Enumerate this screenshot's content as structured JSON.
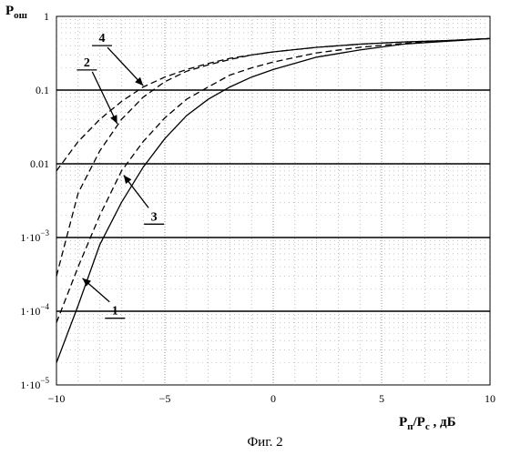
{
  "chart_data": {
    "type": "line",
    "ylabel": "P",
    "ylabel_sub": "ош",
    "xlabel_parts": {
      "p1": "P",
      "s1": "п",
      "slash": "/P",
      "s2": "с",
      "unit": " , дБ"
    },
    "caption": "Фиг. 2",
    "xlim": [
      -10,
      10
    ],
    "ylim": [
      1e-05,
      1
    ],
    "y_scale": "log",
    "grid": true,
    "x_ticks": [
      {
        "value": -10,
        "label": "−10"
      },
      {
        "value": -5,
        "label": "−5"
      },
      {
        "value": 0,
        "label": "0"
      },
      {
        "value": 5,
        "label": "5"
      },
      {
        "value": 10,
        "label": "10"
      }
    ],
    "y_ticks": [
      {
        "value": 1,
        "base": "1",
        "exp": ""
      },
      {
        "value": 0.1,
        "base": "0.1",
        "exp": ""
      },
      {
        "value": 0.01,
        "base": "0.01",
        "exp": ""
      },
      {
        "value": 0.001,
        "base": "1·10",
        "exp": "−3"
      },
      {
        "value": 0.0001,
        "base": "1·10",
        "exp": "−4"
      },
      {
        "value": 1e-05,
        "base": "1·10",
        "exp": "−5"
      }
    ],
    "series": [
      {
        "label": "1",
        "dash": "solid",
        "x": [
          -10,
          -9,
          -8,
          -7,
          -6,
          -5,
          -4,
          -3,
          -2,
          -1,
          0,
          2,
          4,
          6,
          8,
          10
        ],
        "y": [
          2e-05,
          0.00012,
          0.0008,
          0.003,
          0.009,
          0.022,
          0.045,
          0.075,
          0.11,
          0.15,
          0.19,
          0.28,
          0.35,
          0.42,
          0.46,
          0.5
        ],
        "label_text_at": [
          -7.3,
          9e-05
        ],
        "arrow_to": [
          -8.8,
          0.00028
        ]
      },
      {
        "label": "2",
        "dash": "dashed",
        "x": [
          -10,
          -9,
          -8,
          -7,
          -6,
          -5,
          -4,
          -3,
          -2,
          -1,
          0,
          2,
          4,
          6,
          8,
          10
        ],
        "y": [
          0.008,
          0.02,
          0.04,
          0.07,
          0.11,
          0.15,
          0.19,
          0.23,
          0.27,
          0.3,
          0.33,
          0.38,
          0.42,
          0.45,
          0.47,
          0.5
        ],
        "label_text_at": [
          -8.6,
          0.21
        ],
        "arrow_to": [
          -7.2,
          0.035
        ]
      },
      {
        "label": "3",
        "dash": "dashed",
        "x": [
          -10,
          -9,
          -8,
          -7,
          -6,
          -5,
          -4,
          -3,
          -2,
          -1,
          0,
          2,
          4,
          6,
          8,
          10
        ],
        "y": [
          7e-05,
          0.0004,
          0.002,
          0.008,
          0.02,
          0.042,
          0.075,
          0.11,
          0.16,
          0.2,
          0.24,
          0.32,
          0.38,
          0.43,
          0.47,
          0.5
        ],
        "label_text_at": [
          -5.5,
          0.0017
        ],
        "arrow_to": [
          -6.9,
          0.007
        ]
      },
      {
        "label": "4",
        "dash": "dashed",
        "x": [
          -10,
          -9,
          -8,
          -7,
          -6,
          -5,
          -4,
          -3,
          -2,
          -1,
          0,
          2,
          4,
          6,
          8,
          10
        ],
        "y": [
          0.0003,
          0.004,
          0.015,
          0.04,
          0.08,
          0.13,
          0.18,
          0.22,
          0.26,
          0.3,
          0.33,
          0.38,
          0.42,
          0.45,
          0.47,
          0.5
        ],
        "label_text_at": [
          -7.9,
          0.45
        ],
        "arrow_to": [
          -6.0,
          0.115
        ]
      }
    ]
  }
}
